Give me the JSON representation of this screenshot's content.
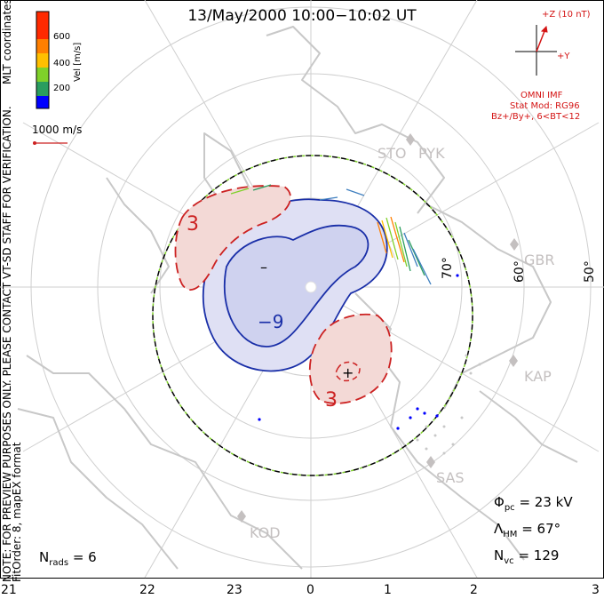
{
  "title": "13/May/2000  10:00−10:02  UT",
  "notes": {
    "line1": "NOTE: FOR PREVIEW PURPOSES ONLY. PLEASE CONTACT VT-SD STAFF FOR VERIFICATION.",
    "line2": "FitOrder: 8, mapEX format",
    "coords": "MLT coordinates"
  },
  "colorbar": {
    "label": "Vel [m/s]",
    "ticks": [
      "600",
      "400",
      "200"
    ],
    "colors": [
      "#0000ff",
      "#3f7fbf",
      "#2a9d5f",
      "#7fd12a",
      "#ffbf00",
      "#ff7f00",
      "#ff2a00"
    ]
  },
  "reference_vector": "1000 m/s",
  "imf": {
    "z_label": "+Z (10 nT)",
    "y_label": "+Y",
    "source": "OMNI IMF",
    "model": "Stat Mod: RG96",
    "conditions": "Bz+/By+, 6<BT<12",
    "color": "#d41414"
  },
  "stations": [
    "STO",
    "PYK",
    "GBR",
    "KAP",
    "SAS",
    "KOD"
  ],
  "latitude_labels": [
    "70°",
    "60°",
    "50°"
  ],
  "contour_labels": [
    "3",
    "−9",
    "3"
  ],
  "extremum_signs": [
    "–",
    "+"
  ],
  "stats": {
    "phi_pc_label": "Φ",
    "phi_pc_sub": "pc",
    "phi_pc_value": "=  23 kV",
    "lambda_label": "Λ",
    "lambda_sub": "HM",
    "lambda_value": "=  67°",
    "nvc_label": "N",
    "nvc_sub": "vc",
    "nvc_value": "=  129",
    "nrads_label": "N",
    "nrads_sub": "rads",
    "nrads_value": "=  6"
  },
  "mlt_ticks": [
    "21",
    "22",
    "23",
    "0",
    "1",
    "2",
    "3"
  ],
  "chart_data": {
    "type": "polar-convection-map",
    "mlt_range": [
      21,
      3
    ],
    "contour_colors": {
      "positive": "#cc2222",
      "negative": "#1a2fa8",
      "boundary": "#000000"
    }
  }
}
